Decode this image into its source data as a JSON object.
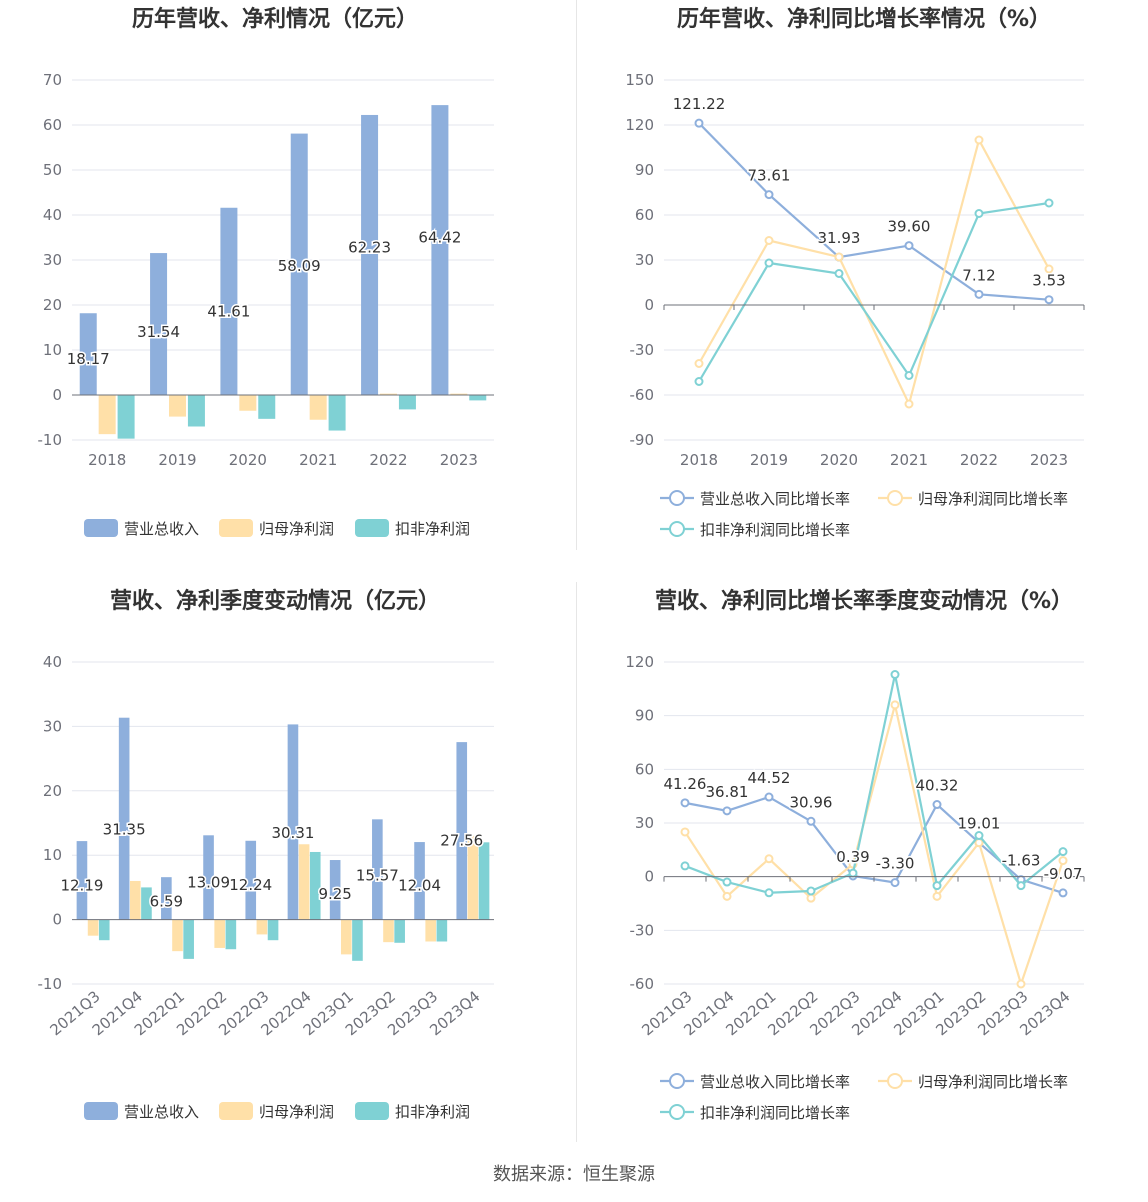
{
  "source": "数据来源：恒生聚源",
  "colors": {
    "revenue": "#8eafdc",
    "net_profit": "#ffe0a8",
    "deducted_profit": "#7fd1d4"
  },
  "chart_data": [
    {
      "id": "p1",
      "type": "bar",
      "title": "历年营收、净利情况（亿元）",
      "categories": [
        "2018",
        "2019",
        "2020",
        "2021",
        "2022",
        "2023"
      ],
      "ylim": [
        -10,
        70
      ],
      "yticks": [
        -10,
        0,
        10,
        20,
        30,
        40,
        50,
        60,
        70
      ],
      "legend": "bottom",
      "series": [
        {
          "name": "营业总收入",
          "color": "#8eafdc",
          "values": [
            18.17,
            31.54,
            41.61,
            58.09,
            62.23,
            64.42
          ],
          "labels": [
            "18.17",
            "31.54",
            "41.61",
            "58.09",
            "62.23",
            "64.42"
          ]
        },
        {
          "name": "归母净利润",
          "color": "#ffe0a8",
          "values": [
            -8.7,
            -4.8,
            -3.5,
            -5.5,
            0.3,
            0.3
          ]
        },
        {
          "name": "扣非净利润",
          "color": "#7fd1d4",
          "values": [
            -9.7,
            -7.0,
            -5.3,
            -7.9,
            -3.2,
            -1.2
          ]
        }
      ]
    },
    {
      "id": "p2",
      "type": "line",
      "title": "历年营收、净利同比增长率情况（%）",
      "categories": [
        "2018",
        "2019",
        "2020",
        "2021",
        "2022",
        "2023"
      ],
      "ylim": [
        -90,
        150
      ],
      "yticks": [
        -90,
        -60,
        -30,
        0,
        30,
        60,
        90,
        120,
        150
      ],
      "legend": "bottom",
      "series": [
        {
          "name": "营业总收入同比增长率",
          "color": "#8eafdc",
          "values": [
            121.22,
            73.61,
            31.93,
            39.6,
            7.12,
            3.53
          ],
          "labels": [
            "121.22",
            "73.61",
            "31.93",
            "39.60",
            "7.12",
            "3.53"
          ]
        },
        {
          "name": "归母净利润同比增长率",
          "color": "#ffe0a8",
          "values": [
            -39,
            43,
            32,
            -66,
            110,
            24
          ]
        },
        {
          "name": "扣非净利润同比增长率",
          "color": "#7fd1d4",
          "values": [
            -51,
            28,
            21,
            -47,
            61,
            68
          ]
        }
      ]
    },
    {
      "id": "p3",
      "type": "bar",
      "title": "营收、净利季度变动情况（亿元）",
      "categories": [
        "2021Q3",
        "2021Q4",
        "2022Q1",
        "2022Q2",
        "2022Q3",
        "2022Q4",
        "2023Q1",
        "2023Q2",
        "2023Q3",
        "2023Q4"
      ],
      "ylim": [
        -10,
        40
      ],
      "yticks": [
        -10,
        0,
        10,
        20,
        30,
        40
      ],
      "legend": "bottom",
      "series": [
        {
          "name": "营业总收入",
          "color": "#8eafdc",
          "values": [
            12.19,
            31.35,
            6.59,
            13.09,
            12.24,
            30.31,
            9.25,
            15.57,
            12.04,
            27.56
          ],
          "labels": [
            "12.19",
            "31.35",
            "6.59",
            "13.09",
            "12.24",
            "30.31",
            "9.25",
            "15.57",
            "12.04",
            "27.56"
          ]
        },
        {
          "name": "归母净利润",
          "color": "#ffe0a8",
          "values": [
            -2.5,
            6.0,
            -4.9,
            -4.4,
            -2.3,
            11.7,
            -5.4,
            -3.5,
            -3.4,
            13.0
          ]
        },
        {
          "name": "扣非净利润",
          "color": "#7fd1d4",
          "values": [
            -3.2,
            5.0,
            -6.1,
            -4.6,
            -3.2,
            10.5,
            -6.4,
            -3.6,
            -3.4,
            12.0
          ]
        }
      ]
    },
    {
      "id": "p4",
      "type": "line",
      "title": "营收、净利同比增长率季度变动情况（%）",
      "categories": [
        "2021Q3",
        "2021Q4",
        "2022Q1",
        "2022Q2",
        "2022Q3",
        "2022Q4",
        "2023Q1",
        "2023Q2",
        "2023Q3",
        "2023Q4"
      ],
      "ylim": [
        -60,
        120
      ],
      "yticks": [
        -60,
        -30,
        0,
        30,
        60,
        90,
        120
      ],
      "legend": "bottom",
      "series": [
        {
          "name": "营业总收入同比增长率",
          "color": "#8eafdc",
          "values": [
            41.26,
            36.81,
            44.52,
            30.96,
            0.39,
            -3.3,
            40.32,
            19.01,
            -1.63,
            -9.07
          ],
          "labels": [
            "41.26",
            "36.81",
            "44.52",
            "30.96",
            "0.39",
            "-3.30",
            "40.32",
            "19.01",
            "-1.63",
            "-9.07"
          ]
        },
        {
          "name": "归母净利润同比增长率",
          "color": "#ffe0a8",
          "values": [
            25,
            -11,
            10,
            -12,
            7,
            96,
            -11,
            19,
            -60,
            9
          ]
        },
        {
          "name": "扣非净利润同比增长率",
          "color": "#7fd1d4",
          "values": [
            6,
            -3,
            -9,
            -8,
            2,
            113,
            -5,
            23,
            -5,
            14
          ]
        }
      ]
    }
  ]
}
